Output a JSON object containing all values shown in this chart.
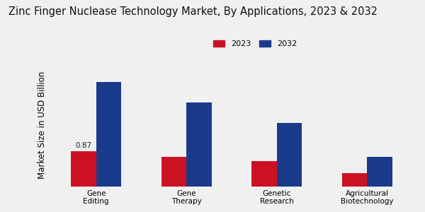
{
  "title": "Zinc Finger Nuclease Technology Market, By Applications, 2023 & 2032",
  "ylabel": "Market Size in USD Billion",
  "categories": [
    "Gene\nEditing",
    "Gene\nTherapy",
    "Genetic\nResearch",
    "Agricultural\nBiotechnology"
  ],
  "values_2023": [
    0.87,
    0.72,
    0.62,
    0.32
  ],
  "values_2032": [
    2.55,
    2.05,
    1.55,
    0.72
  ],
  "color_2023": "#cc1122",
  "color_2032": "#1a3a8c",
  "background_color": "#f0f0f0",
  "annotation_label": "0.87",
  "annotation_bar_index": 0,
  "legend_2023": "2023",
  "legend_2032": "2032",
  "title_fontsize": 10.5,
  "ylabel_fontsize": 8.5,
  "ylim": [
    0,
    3.0
  ]
}
